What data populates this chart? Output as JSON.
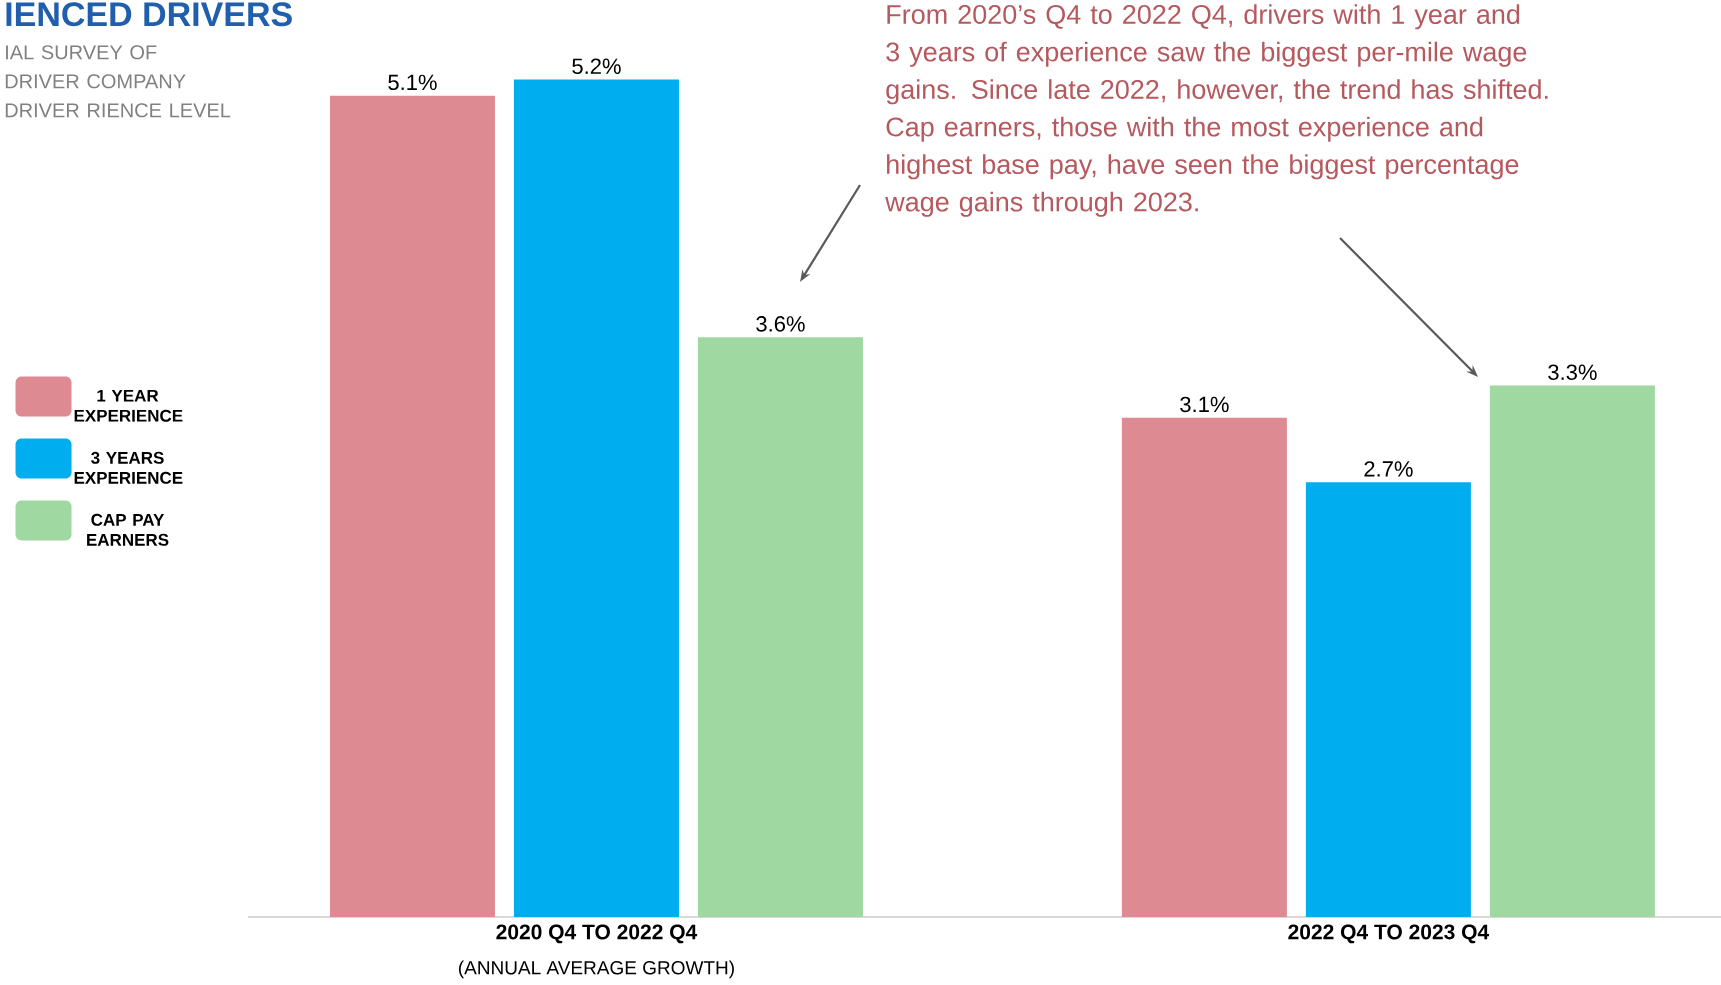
{
  "chart_data": {
    "type": "bar",
    "title": "IENCED DRIVERS",
    "subtitle": "IAL SURVEY OF DRIVER COMPANY DRIVER RIENCE LEVEL",
    "categories": [
      "2020 Q4 TO 2022 Q4",
      "2022 Q4 TO 2023 Q4"
    ],
    "series": [
      {
        "name": "1 YEAR EXPERIENCE",
        "color": "#de8a93",
        "values": [
          5.1,
          3.1
        ],
        "value_labels": [
          "5.1%",
          "3.1%"
        ]
      },
      {
        "name": "3 YEARS EXPERIENCE",
        "color": "#00aeef",
        "values": [
          5.2,
          2.7
        ],
        "value_labels": [
          "5.2%",
          "2.7%"
        ]
      },
      {
        "name": "CAP PAY EARNERS",
        "color": "#9fd8a0",
        "values": [
          3.6,
          3.3
        ],
        "value_labels": [
          "3.6%",
          "3.3%"
        ]
      }
    ],
    "annotations": [
      "From 2020’s Q4 to 2022 Q4, drivers with 1 year and 3 years of experience saw the biggest per-mile wage gains. Since late 2022, however, the trend has shifted. Cap earners, those with the most experience and highest base pay, have seen the biggest percentage wage gains through 2023.",
      "(ANNUAL AVERAGE GROWTH)"
    ],
    "legend": "left"
  }
}
